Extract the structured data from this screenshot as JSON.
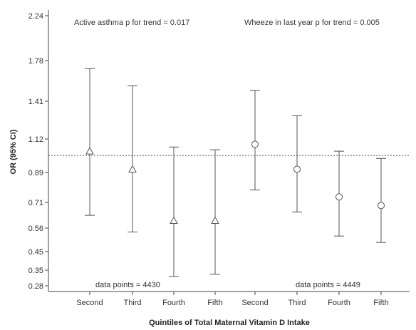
{
  "chart_data": {
    "type": "scatter",
    "xlabel": "Quintiles of Total Maternal Vitamin D Intake",
    "ylabel": "OR (95% CI)",
    "y_ticks": [
      "0.28",
      "0.35",
      "0.45",
      "0.56",
      "0.71",
      "0.89",
      "1.12",
      "1.41",
      "1.78",
      "2.24"
    ],
    "ylim": [
      0.28,
      2.24
    ],
    "y_scale": "log",
    "reference_line": 1.0,
    "grid": false,
    "categories": [
      "Second",
      "Third",
      "Fourth",
      "Fifth",
      "Second",
      "Third",
      "Fourth",
      "Fifth"
    ],
    "annotations": {
      "active_trend": "Active asthma p for trend = 0.017",
      "wheeze_trend": "Wheeze in last year p for trend = 0.005",
      "active_points": "data points = 4430",
      "wheeze_points": "data points = 4449"
    },
    "series": [
      {
        "marker": "triangle",
        "categories": [
          "Second",
          "Third",
          "Fourth",
          "Fifth"
        ],
        "values": [
          1.03,
          0.91,
          0.6,
          0.6
        ],
        "lower": [
          0.63,
          0.54,
          0.32,
          0.33
        ],
        "upper": [
          1.7,
          1.54,
          1.06,
          1.04
        ]
      },
      {
        "marker": "circle",
        "categories": [
          "Second",
          "Third",
          "Fourth",
          "Fifth"
        ],
        "values": [
          1.08,
          0.91,
          0.74,
          0.69
        ],
        "lower": [
          0.78,
          0.65,
          0.52,
          0.49
        ],
        "upper": [
          1.5,
          1.29,
          1.03,
          0.98
        ]
      }
    ],
    "colors": {
      "series": "#555555",
      "axis": "#444444",
      "reference": "#555555"
    }
  }
}
